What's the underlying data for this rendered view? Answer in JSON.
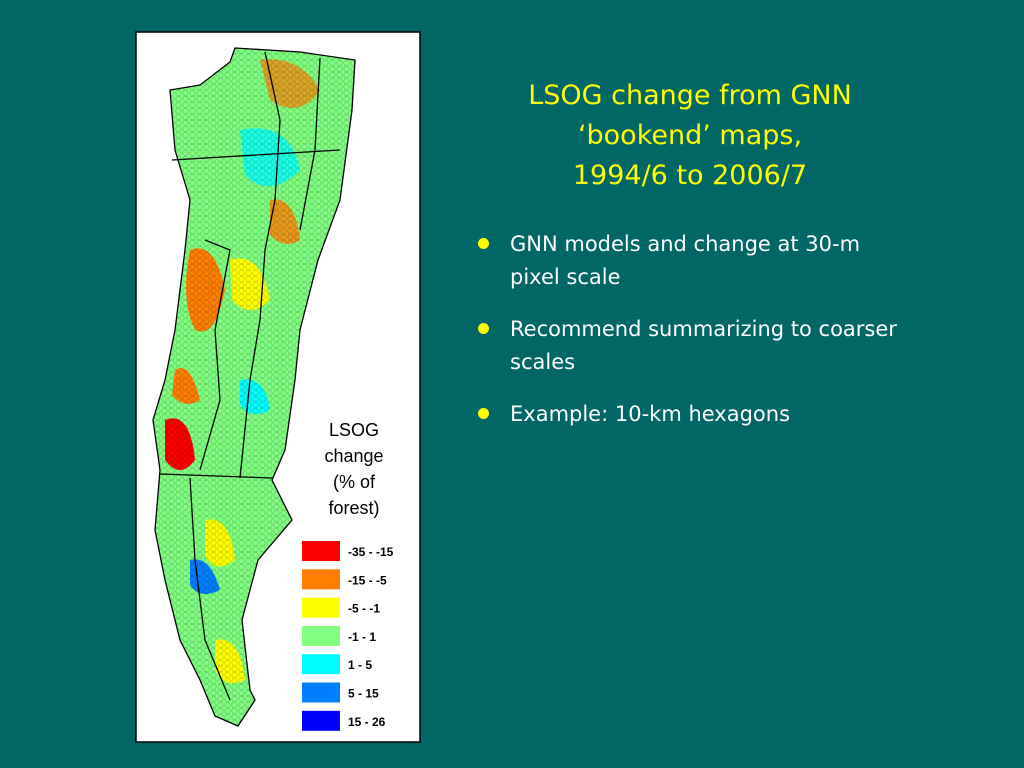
{
  "title": {
    "lines": [
      "LSOG change from GNN",
      "‘bookend’ maps,",
      "1994/6 to 2006/7"
    ]
  },
  "bullets": [
    "GNN models and change at 30-m pixel scale",
    "Recommend summarizing to coarser scales",
    "Example: 10-km hexagons"
  ],
  "legend": {
    "title_lines": [
      "LSOG",
      "change",
      "(% of",
      "forest)"
    ],
    "items": [
      {
        "label": "-35 - -15",
        "color": "#ff0000"
      },
      {
        "label": "-15 - -5",
        "color": "#ff7f00"
      },
      {
        "label": "-5 - -1",
        "color": "#ffff00"
      },
      {
        "label": "-1 - 1",
        "color": "#80ff80"
      },
      {
        "label": "1 - 5",
        "color": "#00ffff"
      },
      {
        "label": "5 - 15",
        "color": "#0080ff"
      },
      {
        "label": "15 - 26",
        "color": "#0000ff"
      }
    ]
  }
}
